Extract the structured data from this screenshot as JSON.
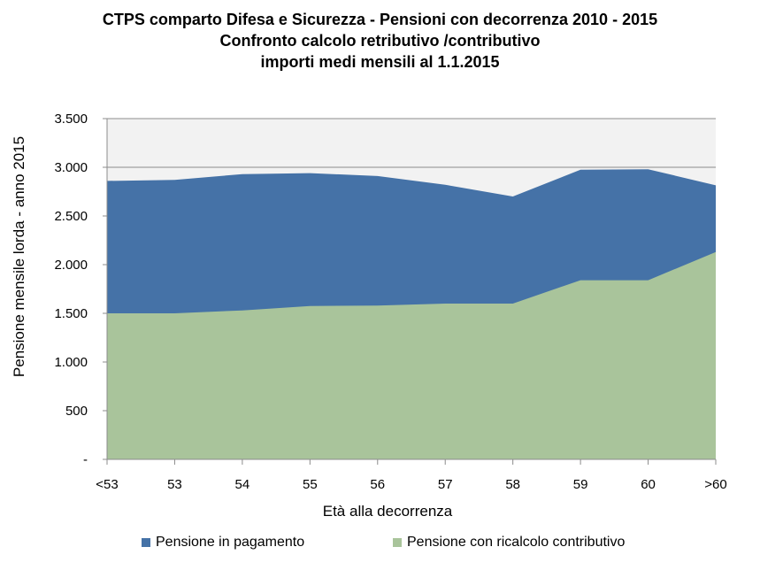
{
  "chart_data": {
    "type": "area",
    "title_lines": [
      "CTPS comparto Difesa e Sicurezza - Pensioni con decorrenza 2010 - 2015",
      "Confronto  calcolo retributivo /contributivo",
      "importi medi mensili al 1.1.2015"
    ],
    "xlabel": "Età alla decorrenza",
    "ylabel": "Pensione mensile lorda - anno 2015",
    "categories": [
      "<53",
      "53",
      "54",
      "55",
      "56",
      "57",
      "58",
      "59",
      "60",
      ">60"
    ],
    "ylim": [
      0,
      3500
    ],
    "yticks": [
      0,
      500,
      1000,
      1500,
      2000,
      2500,
      3000,
      3500
    ],
    "ytick_labels": [
      "-",
      "500",
      "1.000",
      "1.500",
      "2.000",
      "2.500",
      "3.000",
      "3.500"
    ],
    "series": [
      {
        "name": "Pensione in pagamento",
        "color": "#4572A7",
        "values": [
          2860,
          2870,
          2930,
          2940,
          2910,
          2820,
          2700,
          2975,
          2980,
          2815
        ]
      },
      {
        "name": "Pensione con ricalcolo contributivo",
        "color": "#A9C49B",
        "values": [
          1500,
          1500,
          1530,
          1575,
          1580,
          1600,
          1600,
          1840,
          1840,
          2130
        ]
      }
    ],
    "legend_position": "bottom",
    "grid": true
  }
}
